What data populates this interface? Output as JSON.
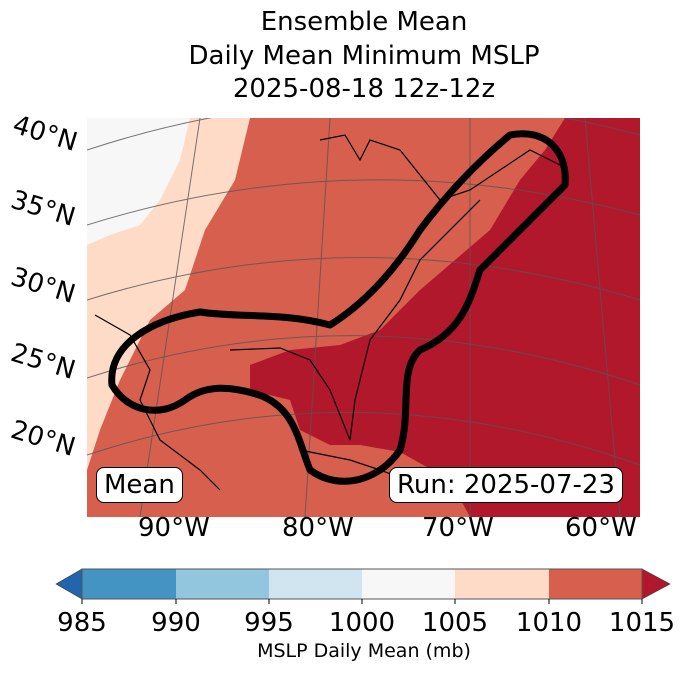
{
  "title": {
    "line1": "Ensemble Mean",
    "line2": "Daily Mean Minimum MSLP",
    "line3": "2025-08-18 12z-12z"
  },
  "lat_labels": [
    "40°N",
    "35°N",
    "30°N",
    "25°N",
    "20°N"
  ],
  "lon_labels": [
    "90°W",
    "80°W",
    "70°W",
    "60°W"
  ],
  "legend_left": "Mean",
  "legend_right": "Run: 2025-07-23",
  "colorbar": {
    "label": "MSLP Daily Mean (mb)",
    "ticks": [
      "985",
      "990",
      "995",
      "1000",
      "1005",
      "1010",
      "1015"
    ],
    "colors": [
      "#4393c3",
      "#92c5de",
      "#d1e5f0",
      "#f7f7f7",
      "#fddbc7",
      "#d6604d"
    ],
    "under_color": "#2166ac",
    "over_color": "#b2182b"
  }
}
